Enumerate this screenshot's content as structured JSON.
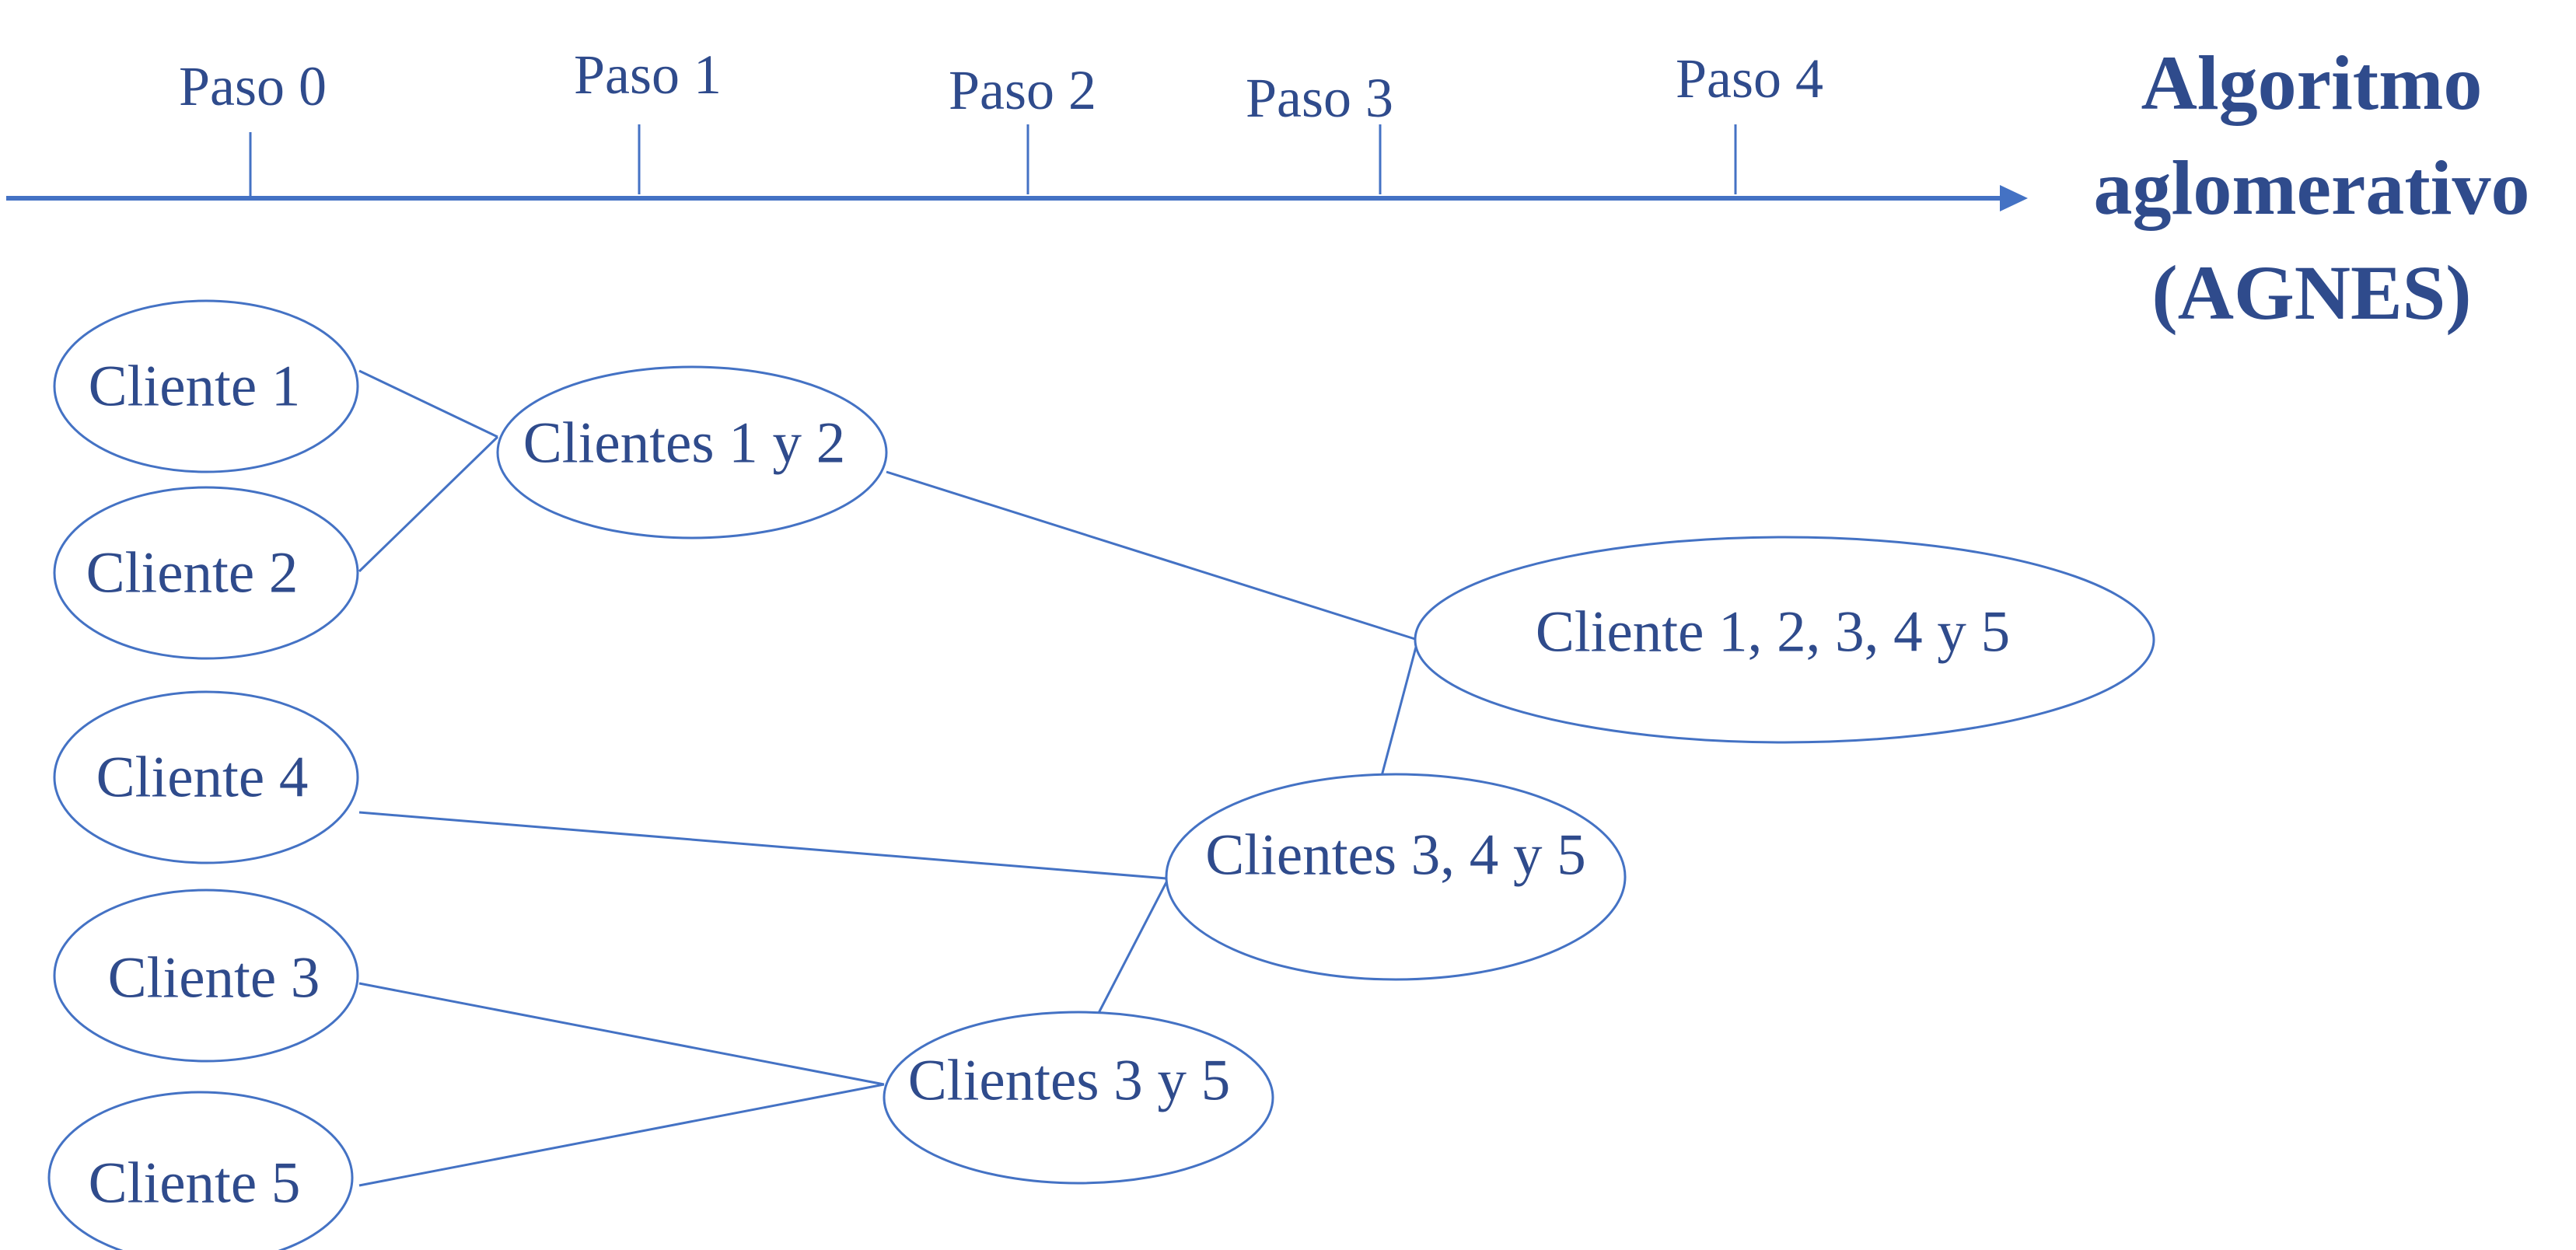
{
  "title": {
    "lines": [
      "Algoritmo",
      "aglomerativo",
      "(AGNES)"
    ]
  },
  "timeline": {
    "steps": [
      "Paso 0",
      "Paso 1",
      "Paso 2",
      "Paso 3",
      "Paso 4"
    ]
  },
  "nodes": {
    "c1": "Cliente 1",
    "c2": "Cliente 2",
    "c4": "Cliente 4",
    "c3": "Cliente 3",
    "c5": "Cliente 5",
    "c12": "Clientes 1 y 2",
    "c35": "Clientes 3 y 5",
    "c345": "Clientes 3, 4 y 5",
    "call": "Cliente 1, 2, 3, 4 y 5"
  },
  "colors": {
    "line": "#4472c4",
    "text": "#2f4b8c"
  }
}
